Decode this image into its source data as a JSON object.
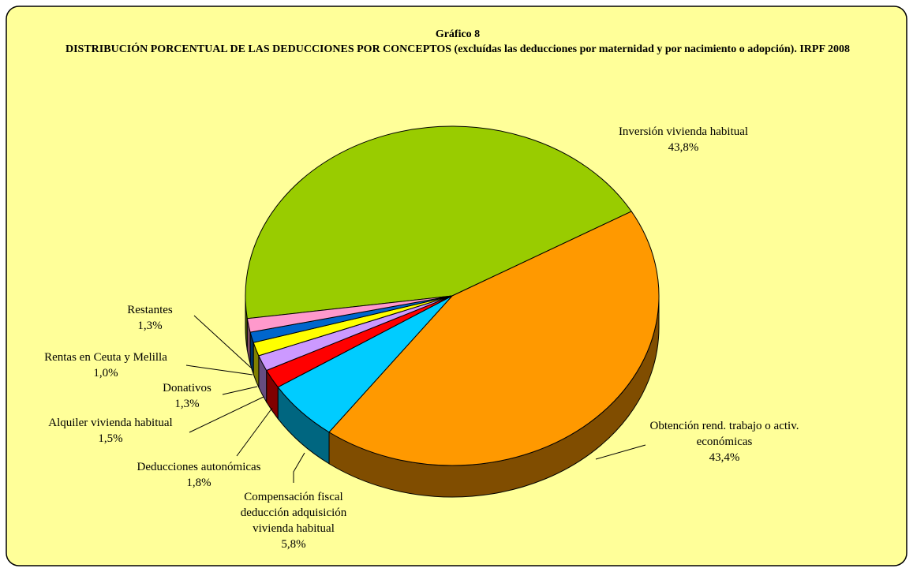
{
  "chart_data": {
    "type": "pie",
    "title": "Gráfico 8",
    "subtitle": "DISTRIBUCIÓN PORCENTUAL DE LAS DEDUCCIONES POR CONCEPTOS (excluídas las deducciones por maternidad y por nacimiento o adopción). IRPF 2008",
    "categories": [
      "Inversión vivienda habitual",
      "Obtención rend. trabajo o activ. económicas",
      "Compensación fiscal deducción adquisición vivienda habitual",
      "Deducciones autonómicas",
      "Alquiler vivienda habitual",
      "Donativos",
      "Rentas en Ceuta y Melilla",
      "Restantes"
    ],
    "values": [
      43.8,
      43.4,
      5.8,
      1.8,
      1.5,
      1.3,
      1.0,
      1.3
    ],
    "value_labels": [
      "43,8%",
      "43,4%",
      "5,8%",
      "1,8%",
      "1,5%",
      "1,3%",
      "1,0%",
      "1,3%"
    ],
    "colors": [
      "#99cc00",
      "#ff9900",
      "#00ccff",
      "#ff0000",
      "#cc99ff",
      "#ffff00",
      "#0066cc",
      "#ff99cc"
    ]
  }
}
